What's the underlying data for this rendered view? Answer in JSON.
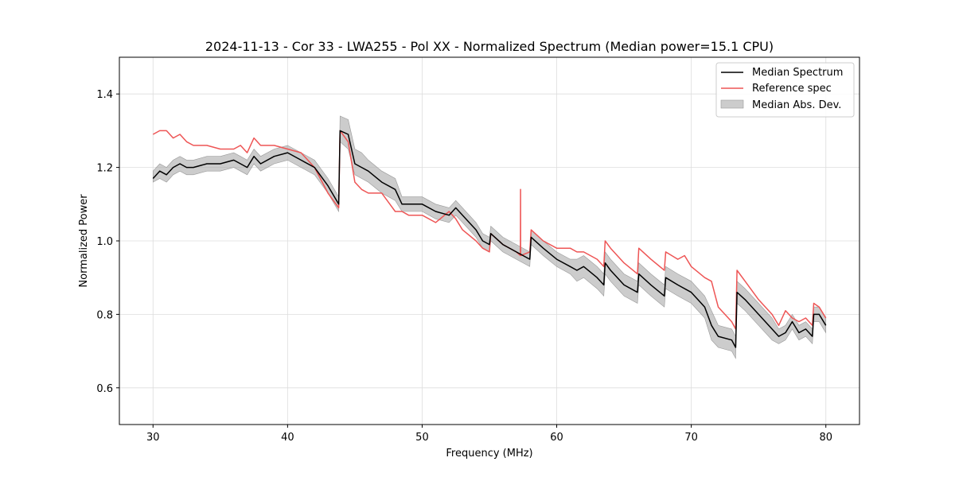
{
  "chart_data": {
    "type": "line",
    "title": "2024-11-13 - Cor 33 - LWA255 - Pol XX - Normalized Spectrum (Median power=15.1 CPU)",
    "xlabel": "Frequency (MHz)",
    "ylabel": "Normalized Power",
    "xlim": [
      27.5,
      82.5
    ],
    "ylim": [
      0.5,
      1.5
    ],
    "xticks": [
      30,
      40,
      50,
      60,
      70,
      80
    ],
    "yticks": [
      0.6,
      0.8,
      1.0,
      1.2,
      1.4
    ],
    "xtick_labels": [
      "30",
      "40",
      "50",
      "60",
      "70",
      "80"
    ],
    "ytick_labels": [
      "0.6",
      "0.8",
      "1.0",
      "1.2",
      "1.4"
    ],
    "grid": true,
    "legend_position": "top-right",
    "colors": {
      "median": "#000000",
      "reference": "#ee5555",
      "mad": "#aaaaaa"
    },
    "series": [
      {
        "name": "Median Spectrum",
        "kind": "line",
        "x": [
          30,
          30.5,
          31,
          31.5,
          32,
          32.5,
          33,
          34,
          35,
          36,
          36.5,
          37,
          37.5,
          38,
          39,
          40,
          41,
          42,
          43,
          43.8,
          43.9,
          44.5,
          45,
          45.5,
          46,
          47,
          48,
          48.5,
          49,
          50,
          51,
          52,
          52.5,
          53,
          54,
          54.5,
          55,
          55.1,
          56,
          57,
          58,
          58.1,
          59,
          60,
          61,
          61.5,
          62,
          63,
          63.5,
          63.6,
          64,
          65,
          66,
          66.1,
          67,
          68,
          68.1,
          69,
          70,
          71,
          71.5,
          72,
          73,
          73.3,
          73.4,
          74,
          75,
          76,
          76.5,
          77,
          77.5,
          78,
          78.5,
          79,
          79.1,
          79.5,
          80
        ],
        "y": [
          1.17,
          1.19,
          1.18,
          1.2,
          1.21,
          1.2,
          1.2,
          1.21,
          1.21,
          1.22,
          1.21,
          1.2,
          1.23,
          1.21,
          1.23,
          1.24,
          1.22,
          1.2,
          1.15,
          1.1,
          1.3,
          1.29,
          1.21,
          1.2,
          1.19,
          1.16,
          1.14,
          1.1,
          1.1,
          1.1,
          1.08,
          1.07,
          1.09,
          1.07,
          1.03,
          1.0,
          0.99,
          1.02,
          0.99,
          0.97,
          0.95,
          1.01,
          0.98,
          0.95,
          0.93,
          0.92,
          0.93,
          0.9,
          0.88,
          0.94,
          0.92,
          0.88,
          0.86,
          0.91,
          0.88,
          0.85,
          0.9,
          0.88,
          0.86,
          0.82,
          0.77,
          0.74,
          0.73,
          0.71,
          0.86,
          0.84,
          0.8,
          0.76,
          0.74,
          0.75,
          0.78,
          0.75,
          0.76,
          0.74,
          0.8,
          0.8,
          0.77
        ]
      },
      {
        "name": "Reference spec",
        "kind": "line",
        "x": [
          30,
          30.5,
          31,
          31.5,
          32,
          32.5,
          33,
          34,
          35,
          36,
          36.5,
          37,
          37.5,
          38,
          39,
          40,
          41,
          42,
          43,
          43.8,
          43.9,
          44.5,
          45,
          45.5,
          46,
          47,
          48,
          48.5,
          49,
          50,
          51,
          52,
          52.5,
          53,
          54,
          54.5,
          55,
          55.1,
          56,
          57,
          57.3,
          57.31,
          57.32,
          58,
          58.1,
          59,
          60,
          61,
          61.5,
          62,
          63,
          63.5,
          63.6,
          64,
          65,
          66,
          66.1,
          67,
          68,
          68.1,
          69,
          69.5,
          70,
          71,
          71.5,
          72,
          73,
          73.3,
          73.4,
          74,
          75,
          76,
          76.5,
          77,
          77.5,
          78,
          78.5,
          79,
          79.1,
          79.5,
          80
        ],
        "y": [
          1.29,
          1.3,
          1.3,
          1.28,
          1.29,
          1.27,
          1.26,
          1.26,
          1.25,
          1.25,
          1.26,
          1.24,
          1.28,
          1.26,
          1.26,
          1.25,
          1.24,
          1.2,
          1.13,
          1.09,
          1.3,
          1.27,
          1.16,
          1.14,
          1.13,
          1.13,
          1.08,
          1.08,
          1.07,
          1.07,
          1.05,
          1.08,
          1.06,
          1.03,
          1.0,
          0.98,
          0.97,
          1.02,
          0.99,
          0.97,
          0.96,
          1.14,
          0.96,
          0.97,
          1.03,
          1.0,
          0.98,
          0.98,
          0.97,
          0.97,
          0.95,
          0.93,
          1.0,
          0.98,
          0.94,
          0.91,
          0.98,
          0.95,
          0.92,
          0.97,
          0.95,
          0.96,
          0.93,
          0.9,
          0.89,
          0.82,
          0.78,
          0.76,
          0.92,
          0.89,
          0.84,
          0.8,
          0.77,
          0.81,
          0.79,
          0.78,
          0.79,
          0.77,
          0.83,
          0.82,
          0.79
        ]
      },
      {
        "name": "Median Abs. Dev.",
        "kind": "band",
        "x": [
          30,
          30.5,
          31,
          31.5,
          32,
          32.5,
          33,
          34,
          35,
          36,
          36.5,
          37,
          37.5,
          38,
          39,
          40,
          41,
          42,
          43,
          43.8,
          43.9,
          44.5,
          45,
          45.5,
          46,
          47,
          48,
          48.5,
          49,
          50,
          51,
          52,
          52.5,
          53,
          54,
          54.5,
          55,
          55.1,
          56,
          57,
          58,
          58.1,
          59,
          60,
          61,
          61.5,
          62,
          63,
          63.5,
          63.6,
          64,
          65,
          66,
          66.1,
          67,
          68,
          68.1,
          69,
          70,
          71,
          71.5,
          72,
          73,
          73.3,
          73.4,
          74,
          75,
          76,
          76.5,
          77,
          77.5,
          78,
          78.5,
          79,
          79.1,
          79.5,
          80
        ],
        "lower": [
          1.16,
          1.17,
          1.16,
          1.18,
          1.19,
          1.18,
          1.18,
          1.19,
          1.19,
          1.2,
          1.19,
          1.18,
          1.21,
          1.19,
          1.21,
          1.22,
          1.2,
          1.18,
          1.13,
          1.08,
          1.27,
          1.25,
          1.18,
          1.17,
          1.16,
          1.13,
          1.11,
          1.08,
          1.08,
          1.08,
          1.06,
          1.05,
          1.07,
          1.05,
          1.01,
          0.98,
          0.97,
          1.0,
          0.97,
          0.95,
          0.93,
          0.99,
          0.96,
          0.93,
          0.91,
          0.89,
          0.9,
          0.87,
          0.85,
          0.91,
          0.89,
          0.85,
          0.83,
          0.88,
          0.85,
          0.82,
          0.87,
          0.85,
          0.83,
          0.79,
          0.73,
          0.71,
          0.7,
          0.68,
          0.83,
          0.81,
          0.77,
          0.73,
          0.72,
          0.73,
          0.76,
          0.73,
          0.74,
          0.72,
          0.78,
          0.78,
          0.75
        ],
        "upper": [
          1.19,
          1.21,
          1.2,
          1.22,
          1.23,
          1.22,
          1.22,
          1.23,
          1.23,
          1.24,
          1.23,
          1.22,
          1.25,
          1.23,
          1.25,
          1.26,
          1.24,
          1.22,
          1.17,
          1.12,
          1.34,
          1.33,
          1.25,
          1.24,
          1.22,
          1.19,
          1.17,
          1.12,
          1.12,
          1.12,
          1.1,
          1.09,
          1.11,
          1.09,
          1.05,
          1.02,
          1.01,
          1.04,
          1.01,
          0.99,
          0.97,
          1.03,
          1.0,
          0.97,
          0.95,
          0.95,
          0.96,
          0.93,
          0.91,
          0.97,
          0.95,
          0.91,
          0.89,
          0.94,
          0.91,
          0.88,
          0.93,
          0.91,
          0.89,
          0.85,
          0.81,
          0.77,
          0.76,
          0.74,
          0.89,
          0.87,
          0.83,
          0.79,
          0.76,
          0.77,
          0.8,
          0.77,
          0.78,
          0.76,
          0.82,
          0.82,
          0.79
        ]
      }
    ]
  }
}
